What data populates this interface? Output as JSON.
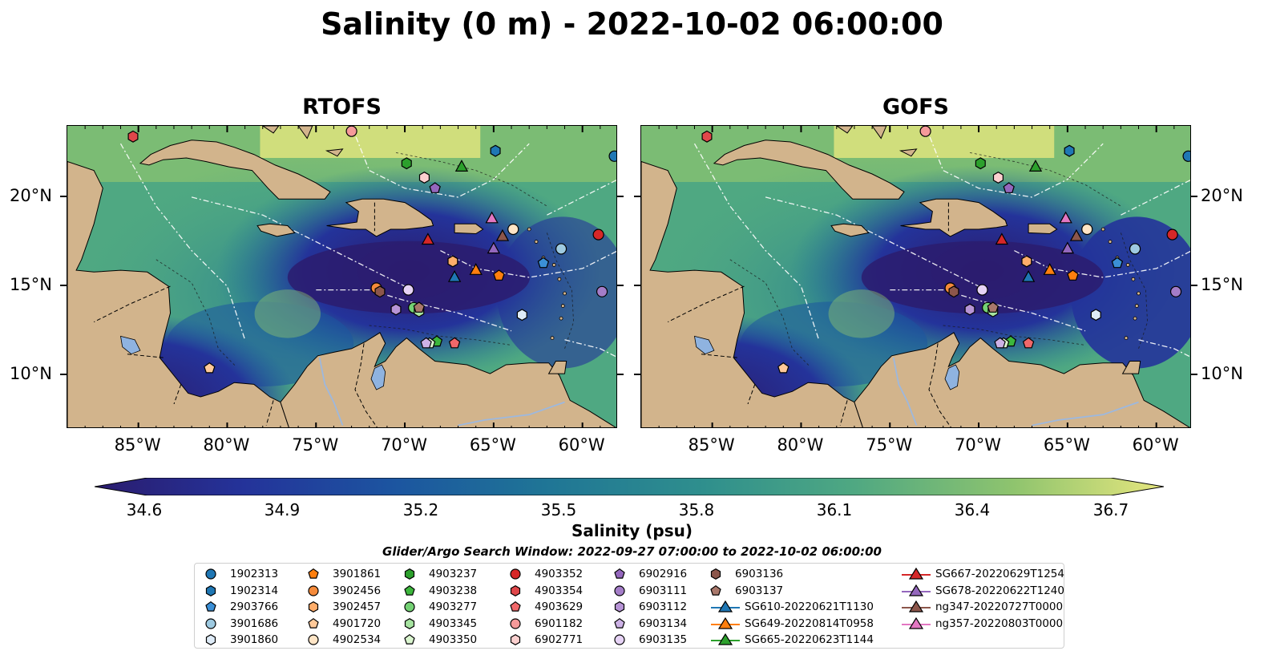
{
  "title": "Salinity (0 m) - 2022-10-02 06:00:00",
  "panels": [
    {
      "title": "RTOFS"
    },
    {
      "title": "GOFS"
    }
  ],
  "axes": {
    "lon_ticks": [
      "85°W",
      "80°W",
      "75°W",
      "70°W",
      "65°W",
      "60°W"
    ],
    "lat_ticks": [
      "20°N",
      "15°N",
      "10°N"
    ]
  },
  "colorbar": {
    "label": "Salinity (psu)",
    "ticks": [
      "34.6",
      "34.9",
      "35.2",
      "35.5",
      "35.8",
      "36.1",
      "36.4",
      "36.7"
    ],
    "colors": [
      "#2b1c6e",
      "#24339a",
      "#1c55a0",
      "#1f7596",
      "#2f8f8d",
      "#4fa882",
      "#8fc46e",
      "#e6e67e"
    ]
  },
  "search_window": "Glider/Argo Search Window: 2022-09-27 07:00:00 to 2022-10-02 06:00:00",
  "legend": {
    "columns": [
      [
        {
          "label": "1902313",
          "shape": "circle",
          "color": "#1f77b4"
        },
        {
          "label": "1902314",
          "shape": "hexagon",
          "color": "#1f77b4"
        },
        {
          "label": "2903766",
          "shape": "pentagon",
          "color": "#3b8fd6"
        },
        {
          "label": "3901686",
          "shape": "circle",
          "color": "#9ecae1"
        },
        {
          "label": "3901860",
          "shape": "hexagon",
          "color": "#deebf7"
        }
      ],
      [
        {
          "label": "3901861",
          "shape": "pentagon",
          "color": "#ff7f0e"
        },
        {
          "label": "3902456",
          "shape": "circle",
          "color": "#f58a3a"
        },
        {
          "label": "3902457",
          "shape": "hexagon",
          "color": "#ffad6a"
        },
        {
          "label": "4901720",
          "shape": "pentagon",
          "color": "#ffc999"
        },
        {
          "label": "4902534",
          "shape": "circle",
          "color": "#ffe5c6"
        }
      ],
      [
        {
          "label": "4903237",
          "shape": "hexagon",
          "color": "#2ca02c"
        },
        {
          "label": "4903238",
          "shape": "pentagon",
          "color": "#3cb63c"
        },
        {
          "label": "4903277",
          "shape": "circle",
          "color": "#74d174"
        },
        {
          "label": "4903345",
          "shape": "hexagon",
          "color": "#a6e3a0"
        },
        {
          "label": "4903350",
          "shape": "pentagon",
          "color": "#daf5cf"
        }
      ],
      [
        {
          "label": "4903352",
          "shape": "circle",
          "color": "#d62728"
        },
        {
          "label": "4903354",
          "shape": "hexagon",
          "color": "#e0474a"
        },
        {
          "label": "4903629",
          "shape": "pentagon",
          "color": "#f0686a"
        },
        {
          "label": "6901182",
          "shape": "circle",
          "color": "#f59a9a"
        },
        {
          "label": "6902771",
          "shape": "hexagon",
          "color": "#fbd0cf"
        }
      ],
      [
        {
          "label": "6902916",
          "shape": "pentagon",
          "color": "#9467bd"
        },
        {
          "label": "6903111",
          "shape": "circle",
          "color": "#a47dc8"
        },
        {
          "label": "6903112",
          "shape": "hexagon",
          "color": "#b794d6"
        },
        {
          "label": "6903134",
          "shape": "pentagon",
          "color": "#cdb2e6"
        },
        {
          "label": "6903135",
          "shape": "circle",
          "color": "#e6d3f5"
        }
      ],
      [
        {
          "label": "6903136",
          "shape": "hexagon",
          "color": "#8c564b"
        },
        {
          "label": "6903137",
          "shape": "pentagon",
          "color": "#a9786b"
        },
        {
          "label": "SG610-20220621T1130",
          "shape": "triangle-line",
          "color": "#1f77b4"
        },
        {
          "label": "SG649-20220814T0958",
          "shape": "triangle-line",
          "color": "#ff7f0e"
        },
        {
          "label": "SG665-20220623T1144",
          "shape": "triangle-line",
          "color": "#2ca02c"
        }
      ],
      [
        {
          "label": "SG667-20220629T1254",
          "shape": "triangle-line",
          "color": "#d62728"
        },
        {
          "label": "SG678-20220622T1240",
          "shape": "triangle-line",
          "color": "#9467bd"
        },
        {
          "label": "ng347-20220727T0000",
          "shape": "triangle-line",
          "color": "#8c564b"
        },
        {
          "label": "ng357-20220803T0000",
          "shape": "triangle-line",
          "color": "#e377c2"
        }
      ]
    ]
  },
  "map_extent": {
    "lon": [
      -89,
      -58
    ],
    "lat": [
      7,
      24
    ]
  },
  "land_color": "#d2b48c",
  "lake_color": "#8fb3e0",
  "markers": [
    {
      "id": "1902313",
      "lon": -58.2,
      "lat": 22.3
    },
    {
      "id": "1902314",
      "lon": -64.9,
      "lat": 22.6
    },
    {
      "id": "2903766",
      "lon": -62.2,
      "lat": 16.3
    },
    {
      "id": "3901686",
      "lon": -61.2,
      "lat": 17.1
    },
    {
      "id": "3901860",
      "lon": -63.4,
      "lat": 13.4
    },
    {
      "id": "3901861",
      "lon": -64.7,
      "lat": 15.6
    },
    {
      "id": "3902456",
      "lon": -71.6,
      "lat": 14.9
    },
    {
      "id": "3902457",
      "lon": -67.3,
      "lat": 16.4
    },
    {
      "id": "4901720",
      "lon": -81.0,
      "lat": 10.4
    },
    {
      "id": "4902534",
      "lon": -63.9,
      "lat": 18.2
    },
    {
      "id": "4903237",
      "lon": -69.9,
      "lat": 21.9
    },
    {
      "id": "4903238",
      "lon": -68.2,
      "lat": 11.9
    },
    {
      "id": "4903277",
      "lon": -69.5,
      "lat": 13.8
    },
    {
      "id": "4903345",
      "lon": -69.2,
      "lat": 13.6
    },
    {
      "id": "4903350",
      "lon": -68.6,
      "lat": 11.8
    },
    {
      "id": "4903352",
      "lon": -59.1,
      "lat": 17.9
    },
    {
      "id": "4903354",
      "lon": -85.3,
      "lat": 23.4
    },
    {
      "id": "4903629",
      "lon": -67.2,
      "lat": 11.8
    },
    {
      "id": "6901182",
      "lon": -73.0,
      "lat": 23.7
    },
    {
      "id": "6902771",
      "lon": -68.9,
      "lat": 21.1
    },
    {
      "id": "6902916",
      "lon": -68.3,
      "lat": 20.5
    },
    {
      "id": "6903111",
      "lon": -58.9,
      "lat": 14.7
    },
    {
      "id": "6903112",
      "lon": -70.5,
      "lat": 13.7
    },
    {
      "id": "6903134",
      "lon": -68.8,
      "lat": 11.8
    },
    {
      "id": "6903135",
      "lon": -69.8,
      "lat": 14.8
    },
    {
      "id": "6903136",
      "lon": -71.4,
      "lat": 14.7
    },
    {
      "id": "6903137",
      "lon": -69.2,
      "lat": 13.8
    },
    {
      "id": "SG610-20220621T1130",
      "lon": -67.2,
      "lat": 15.5
    },
    {
      "id": "SG649-20220814T0958",
      "lon": -66.0,
      "lat": 15.9
    },
    {
      "id": "SG665-20220623T1144",
      "lon": -66.8,
      "lat": 21.7
    },
    {
      "id": "SG667-20220629T1254",
      "lon": -68.7,
      "lat": 17.6
    },
    {
      "id": "SG678-20220622T1240",
      "lon": -65.0,
      "lat": 17.1
    },
    {
      "id": "ng347-20220727T0000",
      "lon": -64.5,
      "lat": 17.8
    },
    {
      "id": "ng357-20220803T0000",
      "lon": -65.1,
      "lat": 18.8
    }
  ]
}
